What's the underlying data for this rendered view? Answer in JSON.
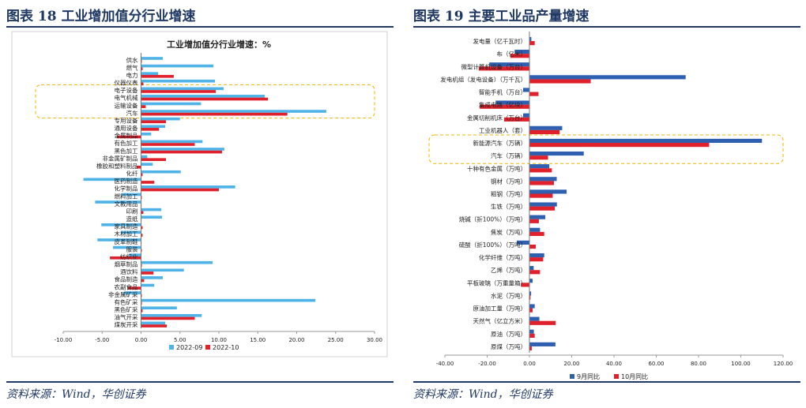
{
  "left": {
    "title": "图表 18    工业增加值分行业增速",
    "source": "资料来源：Wind，华创证券"
  },
  "right": {
    "title": "图表 19    主要工业品产量增速",
    "source": "资料来源：Wind，华创证券"
  },
  "chart_data": [
    {
      "type": "bar",
      "orientation": "horizontal",
      "title": "工业增加值分行业增速：%",
      "categories": [
        "供水",
        "燃气",
        "电力",
        "仪器仪表",
        "电子设备",
        "电气机械",
        "运输设备",
        "汽车",
        "专用设备",
        "通用设备",
        "金属制品",
        "有色加工",
        "黑色加工",
        "非金属矿制品",
        "橡胶和塑料制品",
        "化纤",
        "医药制造",
        "化学制品",
        "燃料加工",
        "文教用品",
        "印刷",
        "造纸",
        "家具制造",
        "木材加工",
        "皮革制鞋",
        "服装",
        "纺织业",
        "烟草制品",
        "酒饮料",
        "食品制造",
        "农副食品",
        "非金属矿采",
        "有色矿采",
        "黑色矿采",
        "油气开采",
        "煤炭开采"
      ],
      "series": [
        {
          "name": "2022-09",
          "color": "#4fb3e8",
          "values": [
            2.8,
            9.3,
            2.2,
            9.5,
            10.6,
            15.9,
            7.7,
            23.8,
            5.0,
            3.1,
            1.3,
            7.9,
            10.7,
            0.8,
            1.5,
            5.1,
            -7.4,
            12.1,
            -2.5,
            -5.9,
            2.6,
            2.7,
            -5.1,
            -2.6,
            -5.6,
            -3.6,
            -1.5,
            9.2,
            5.5,
            2.8,
            1.7,
            -2.2,
            22.4,
            4.6,
            7.8,
            3.1
          ]
        },
        {
          "name": "2022-10",
          "color": "#e0202a",
          "values": [
            0.1,
            0.2,
            4.2,
            0.3,
            9.6,
            16.3,
            0.6,
            18.8,
            3.2,
            2.3,
            -3.1,
            6.9,
            10.4,
            3.2,
            -0.6,
            0.2,
            1.7,
            10.0,
            0.1,
            0.0,
            0.3,
            0.0,
            0.2,
            0.2,
            0.0,
            0.1,
            -4.0,
            0.1,
            1.6,
            0.4,
            -1.7,
            0.1,
            0.1,
            0.2,
            6.9,
            3.3
          ]
        }
      ],
      "xlim": [
        -10,
        30
      ],
      "xticks": [
        "-10.00",
        "-5.00",
        "0.00",
        "5.00",
        "10.00",
        "15.00",
        "20.00",
        "25.00",
        "30.00"
      ],
      "highlight": [
        "电子设备",
        "汽车"
      ]
    },
    {
      "type": "bar",
      "orientation": "horizontal",
      "title": "",
      "categories": [
        "发电量（亿千瓦时）",
        "布（亿米）",
        "微型计算机设备（万台）",
        "发电机组（发电设备）（万千瓦）",
        "智能手机（万台）",
        "集成电路（亿块）",
        "金属切削机床（万台）",
        "工业机器人（套）",
        "新能源汽车（万辆）",
        "汽车（万辆）",
        "十种有色金属（万吨）",
        "钢材（万吨）",
        "粗钢（万吨）",
        "生铁（万吨）",
        "烧碱（折100%）（万吨）",
        "焦炭（万吨）",
        "硫酸（折100%）（万吨）",
        "化学纤维（万吨）",
        "乙烯（万吨）",
        "平板玻璃（万重量箱）",
        "水泥（万吨）",
        "原油加工量（万吨）",
        "天然气（亿立方米）",
        "原油（万吨）",
        "原煤（万吨）"
      ],
      "series": [
        {
          "name": "9月同比",
          "color": "#2e5fb0",
          "values": [
            0.9,
            -7.0,
            -19.0,
            73.9,
            -3.0,
            -16.0,
            -3.0,
            15.5,
            110.0,
            25.7,
            9.4,
            12.9,
            17.6,
            13.0,
            7.5,
            5.0,
            -6.0,
            7.0,
            2.0,
            1.5,
            0.8,
            2.5,
            4.7,
            2.1,
            12.3
          ]
        },
        {
          "name": "10月同比",
          "color": "#e0202a",
          "values": [
            2.5,
            -9.0,
            -24.0,
            29.0,
            4.3,
            -23.5,
            -12.0,
            14.3,
            85.0,
            8.8,
            10.6,
            11.6,
            11.0,
            12.0,
            4.5,
            7.0,
            3.0,
            6.5,
            5.0,
            -4.0,
            0.5,
            1.5,
            12.4,
            2.5,
            1.1
          ]
        }
      ],
      "xlim": [
        -40,
        120
      ],
      "xticks": [
        "-40.00",
        "-20.00",
        "0.00",
        "20.00",
        "40.00",
        "60.00",
        "80.00",
        "100.00",
        "120.00"
      ],
      "highlight": [
        "新能源汽车（万辆）",
        "汽车（万辆）"
      ]
    }
  ]
}
